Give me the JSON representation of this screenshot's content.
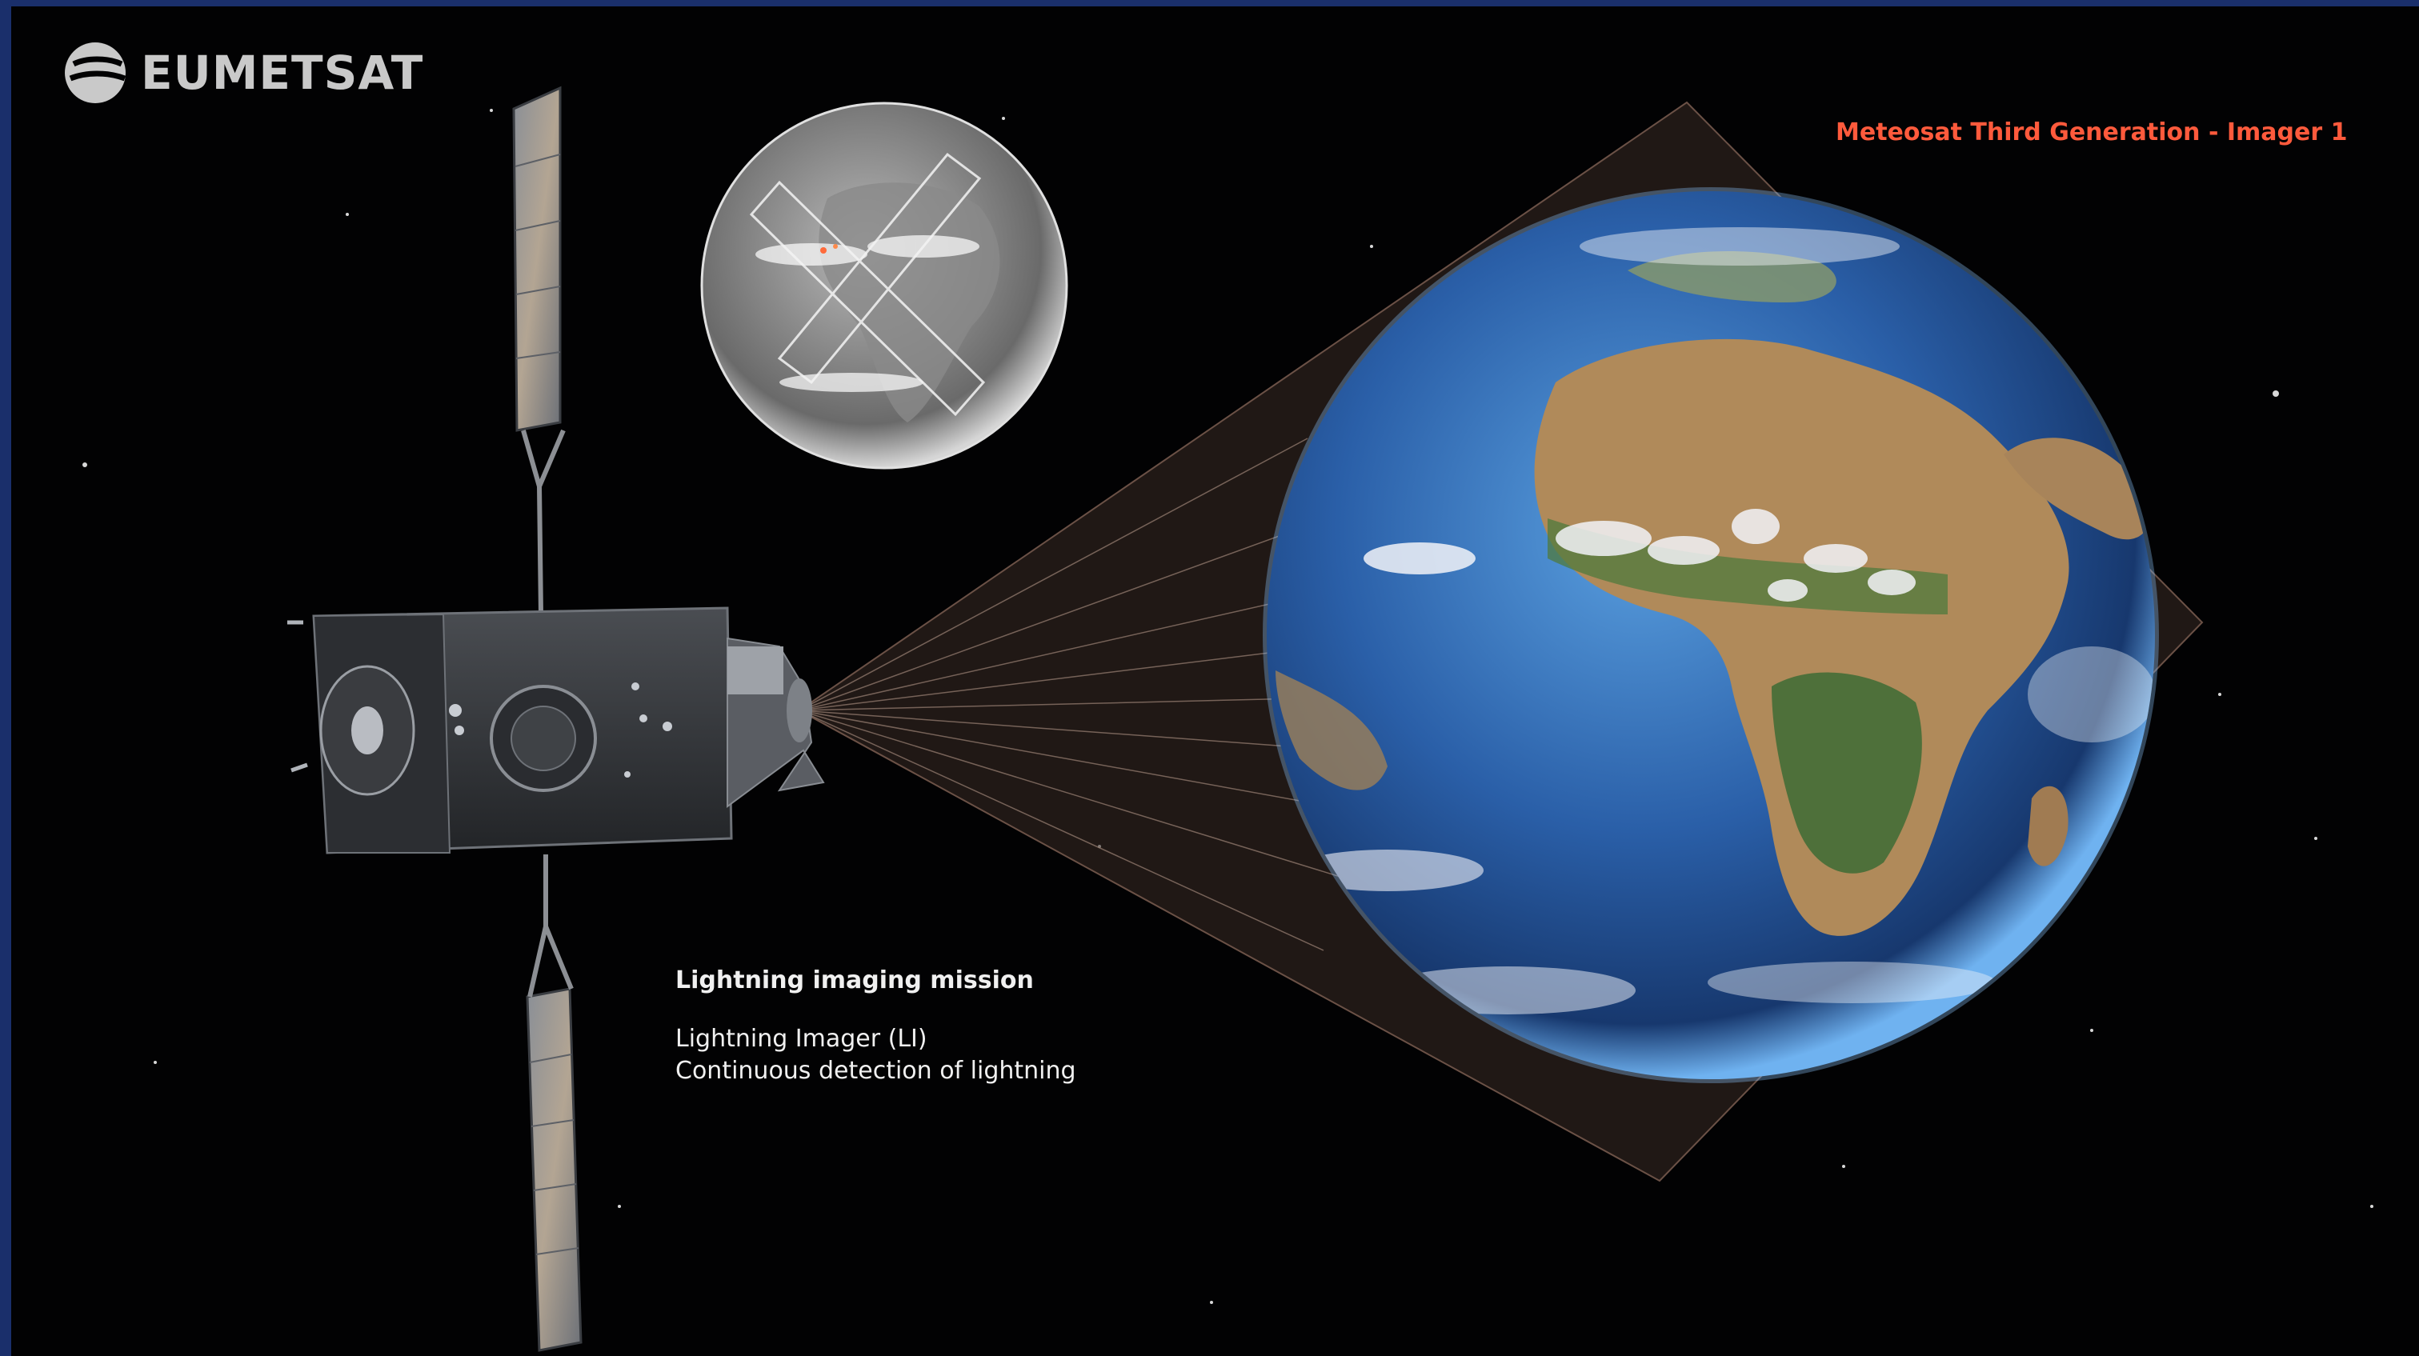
{
  "brand": {
    "logo_text": "EUMETSAT"
  },
  "overlay": {
    "title": "Meteosat Third Generation - Imager 1",
    "caption_heading": "Lightning imaging mission",
    "caption_line1": "Lightning Imager (LI)",
    "caption_line2": "Continuous detection of lightning"
  },
  "colors": {
    "title_accent": "#ff5a3c",
    "background": "#020203",
    "frame": "#1a2f6b",
    "ocean": "#2f6db8",
    "land": "#b08a5a"
  }
}
